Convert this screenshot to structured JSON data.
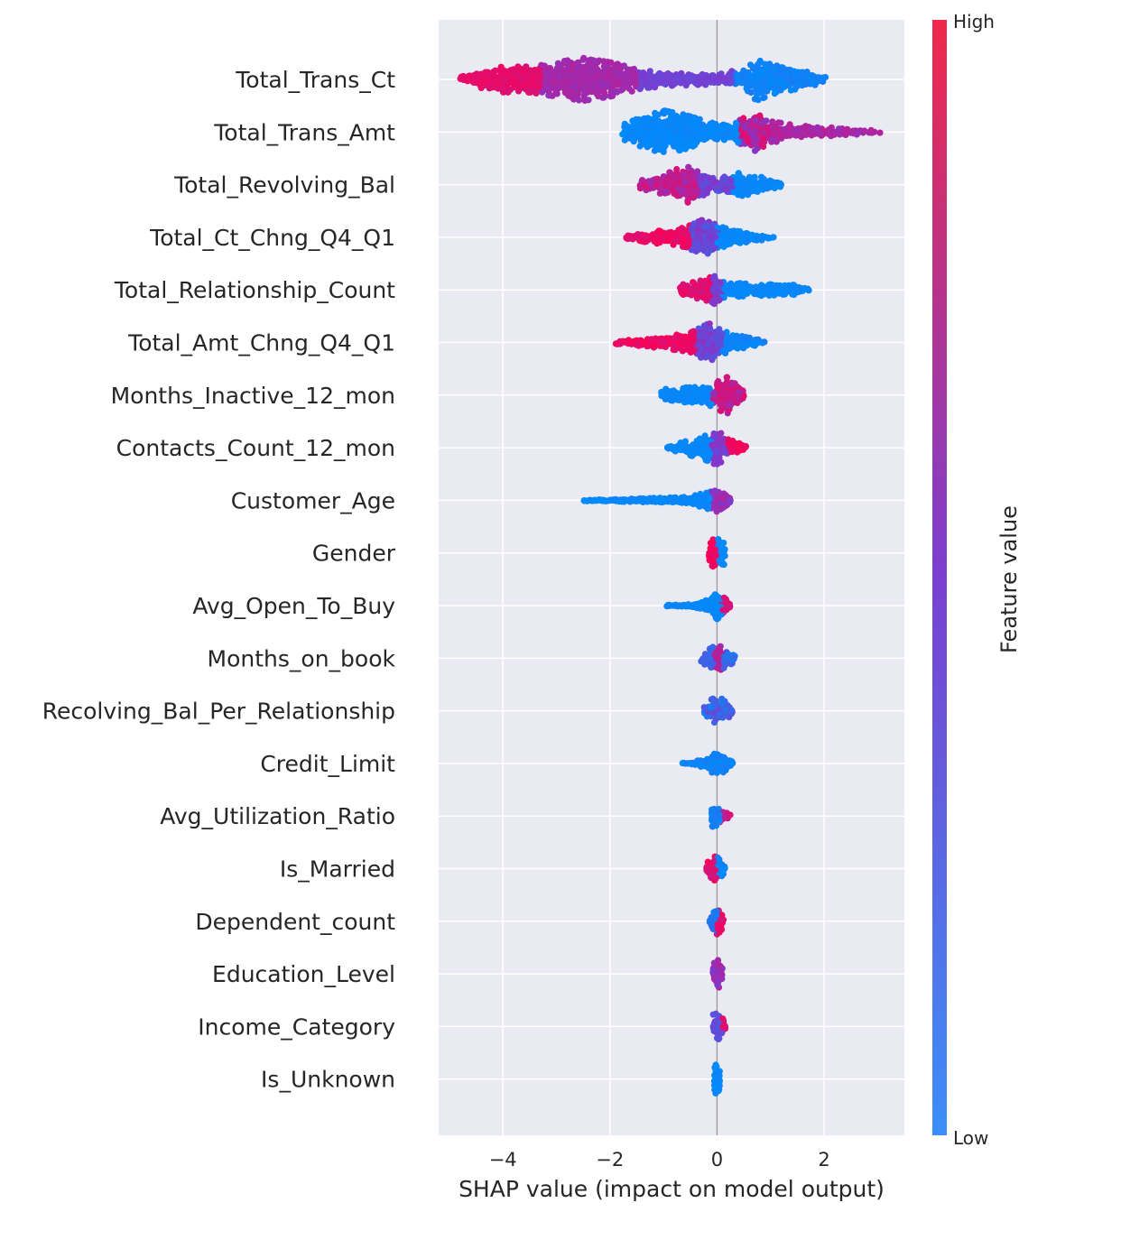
{
  "chart_data": {
    "type": "scatter",
    "subtype": "beeswarm",
    "title": "",
    "xlabel": "SHAP value (impact on model output)",
    "ylabel": "",
    "xlim": [
      -5.2,
      3.5
    ],
    "x_ticks": [
      {
        "value": -4,
        "label": "−4"
      },
      {
        "value": -2,
        "label": "−2"
      },
      {
        "value": 0,
        "label": "0"
      },
      {
        "value": 2,
        "label": "2"
      }
    ],
    "grid": true,
    "colorbar": {
      "title": "Feature value",
      "high_label": "High",
      "low_label": "Low",
      "high_color": "#ff0051",
      "low_color": "#008bfb"
    },
    "features": [
      {
        "name": "Total_Trans_Ct",
        "min": -4.8,
        "max": 2.05,
        "spread": 0.95,
        "color_segments": [
          [
            -4.8,
            -3.3,
            0.95,
            0.85
          ],
          [
            -3.3,
            -1.5,
            0.7,
            0.6
          ],
          [
            -1.5,
            0.3,
            0.5,
            0.4
          ],
          [
            0.3,
            2.05,
            0.1,
            0.0
          ]
        ],
        "density": [
          [
            -4.8,
            0.1
          ],
          [
            -4.4,
            0.4
          ],
          [
            -4.0,
            0.6
          ],
          [
            -3.5,
            0.6
          ],
          [
            -3.0,
            0.8
          ],
          [
            -2.5,
            1.0
          ],
          [
            -2.0,
            0.8
          ],
          [
            -1.5,
            0.5
          ],
          [
            -1.0,
            0.3
          ],
          [
            0.0,
            0.25
          ],
          [
            0.5,
            0.5
          ],
          [
            0.75,
            1.0
          ],
          [
            1.0,
            0.7
          ],
          [
            1.4,
            0.5
          ],
          [
            1.8,
            0.3
          ],
          [
            2.05,
            0.1
          ]
        ]
      },
      {
        "name": "Total_Trans_Amt",
        "min": -1.8,
        "max": 3.05,
        "spread": 0.95,
        "color_segments": [
          [
            -1.8,
            0.4,
            0.05,
            0.0
          ],
          [
            0.4,
            1.0,
            0.95,
            0.5
          ],
          [
            1.0,
            3.05,
            0.75,
            0.6
          ]
        ],
        "density": [
          [
            -1.8,
            0.3
          ],
          [
            -1.4,
            0.7
          ],
          [
            -1.0,
            1.0
          ],
          [
            -0.6,
            0.8
          ],
          [
            -0.2,
            0.5
          ],
          [
            0.3,
            0.4
          ],
          [
            0.7,
            0.9
          ],
          [
            1.0,
            0.5
          ],
          [
            1.5,
            0.3
          ],
          [
            2.2,
            0.2
          ],
          [
            3.05,
            0.05
          ]
        ]
      },
      {
        "name": "Total_Revolving_Bal",
        "min": -1.45,
        "max": 1.2,
        "spread": 0.85,
        "color_segments": [
          [
            -1.45,
            -0.35,
            0.85,
            0.6
          ],
          [
            -0.35,
            0.3,
            0.6,
            0.3
          ],
          [
            0.3,
            1.2,
            0.05,
            0.0
          ]
        ],
        "density": [
          [
            -1.45,
            0.2
          ],
          [
            -1.0,
            0.5
          ],
          [
            -0.6,
            1.0
          ],
          [
            -0.3,
            0.6
          ],
          [
            0.0,
            0.3
          ],
          [
            0.4,
            0.6
          ],
          [
            0.7,
            0.5
          ],
          [
            1.2,
            0.1
          ]
        ]
      },
      {
        "name": "Total_Ct_Chng_Q4_Q1",
        "min": -1.7,
        "max": 1.1,
        "spread": 0.85,
        "color_segments": [
          [
            -1.7,
            -0.5,
            1.0,
            0.85
          ],
          [
            -0.5,
            0.0,
            0.6,
            0.3
          ],
          [
            0.0,
            1.1,
            0.05,
            0.0
          ]
        ],
        "density": [
          [
            -1.7,
            0.1
          ],
          [
            -1.2,
            0.3
          ],
          [
            -0.6,
            0.5
          ],
          [
            -0.2,
            1.0
          ],
          [
            0.0,
            0.6
          ],
          [
            0.3,
            0.35
          ],
          [
            0.7,
            0.2
          ],
          [
            1.1,
            0.05
          ]
        ]
      },
      {
        "name": "Total_Relationship_Count",
        "min": -0.7,
        "max": 1.75,
        "spread": 0.7,
        "color_segments": [
          [
            -0.7,
            -0.1,
            0.95,
            0.8
          ],
          [
            -0.1,
            0.1,
            0.6,
            0.4
          ],
          [
            0.1,
            1.75,
            0.05,
            0.0
          ]
        ],
        "density": [
          [
            -0.7,
            0.3
          ],
          [
            -0.3,
            0.6
          ],
          [
            -0.1,
            1.0
          ],
          [
            0.1,
            0.5
          ],
          [
            0.5,
            0.4
          ],
          [
            1.0,
            0.35
          ],
          [
            1.5,
            0.3
          ],
          [
            1.75,
            0.1
          ]
        ]
      },
      {
        "name": "Total_Amt_Chng_Q4_Q1",
        "min": -1.9,
        "max": 0.95,
        "spread": 0.85,
        "color_segments": [
          [
            -1.9,
            -0.4,
            1.0,
            0.85
          ],
          [
            -0.4,
            0.1,
            0.6,
            0.3
          ],
          [
            0.1,
            0.95,
            0.1,
            0.0
          ]
        ],
        "density": [
          [
            -1.9,
            0.1
          ],
          [
            -1.0,
            0.3
          ],
          [
            -0.5,
            0.5
          ],
          [
            -0.15,
            1.0
          ],
          [
            0.1,
            0.6
          ],
          [
            0.5,
            0.3
          ],
          [
            0.95,
            0.05
          ]
        ]
      },
      {
        "name": "Months_Inactive_12_mon",
        "min": -1.05,
        "max": 0.5,
        "spread": 0.8,
        "color_segments": [
          [
            -1.05,
            -0.1,
            0.05,
            0.0
          ],
          [
            -0.1,
            0.5,
            0.9,
            0.6
          ]
        ],
        "density": [
          [
            -1.05,
            0.3
          ],
          [
            -0.5,
            0.5
          ],
          [
            -0.1,
            0.6
          ],
          [
            0.0,
            0.8
          ],
          [
            0.2,
            1.0
          ],
          [
            0.5,
            0.2
          ]
        ]
      },
      {
        "name": "Contacts_Count_12_mon",
        "min": -0.95,
        "max": 0.55,
        "spread": 0.85,
        "color_segments": [
          [
            -0.95,
            -0.1,
            0.05,
            0.0
          ],
          [
            -0.1,
            0.2,
            0.6,
            0.4
          ],
          [
            0.2,
            0.55,
            1.0,
            0.9
          ]
        ],
        "density": [
          [
            -0.95,
            0.05
          ],
          [
            -0.5,
            0.4
          ],
          [
            -0.15,
            0.7
          ],
          [
            0.0,
            1.0
          ],
          [
            0.15,
            0.5
          ],
          [
            0.55,
            0.1
          ]
        ]
      },
      {
        "name": "Customer_Age",
        "min": -2.55,
        "max": 0.25,
        "spread": 0.5,
        "color_segments": [
          [
            -2.55,
            -0.1,
            0.05,
            0.0
          ],
          [
            -0.1,
            0.25,
            0.7,
            0.5
          ]
        ],
        "density": [
          [
            -2.55,
            0.05
          ],
          [
            -1.5,
            0.15
          ],
          [
            -0.5,
            0.3
          ],
          [
            0.0,
            1.0
          ],
          [
            0.25,
            0.2
          ]
        ]
      },
      {
        "name": "Gender",
        "min": -0.15,
        "max": 0.15,
        "spread": 0.7,
        "color_segments": [
          [
            -0.15,
            0.0,
            1.0,
            0.9
          ],
          [
            0.0,
            0.15,
            0.05,
            0.0
          ]
        ],
        "density": [
          [
            -0.15,
            0.7
          ],
          [
            -0.05,
            0.9
          ],
          [
            0.05,
            0.9
          ],
          [
            0.15,
            0.7
          ]
        ]
      },
      {
        "name": "Avg_Open_To_Buy",
        "min": -0.95,
        "max": 0.25,
        "spread": 0.6,
        "color_segments": [
          [
            -0.95,
            0.1,
            0.05,
            0.0
          ],
          [
            0.1,
            0.25,
            0.9,
            0.8
          ]
        ],
        "density": [
          [
            -0.95,
            0.05
          ],
          [
            -0.5,
            0.1
          ],
          [
            -0.1,
            0.5
          ],
          [
            0.0,
            1.0
          ],
          [
            0.25,
            0.2
          ]
        ]
      },
      {
        "name": "Months_on_book",
        "min": -0.3,
        "max": 0.35,
        "spread": 0.6,
        "color_segments": [
          [
            -0.3,
            -0.05,
            0.3,
            0.2
          ],
          [
            -0.05,
            0.1,
            0.8,
            0.6
          ],
          [
            0.1,
            0.35,
            0.3,
            0.1
          ]
        ],
        "density": [
          [
            -0.3,
            0.3
          ],
          [
            0.0,
            1.0
          ],
          [
            0.35,
            0.3
          ]
        ]
      },
      {
        "name": "Recolving_Bal_Per_Relationship",
        "min": -0.25,
        "max": 0.3,
        "spread": 0.7,
        "color_segments": [
          [
            -0.25,
            0.3,
            0.4,
            0.1
          ]
        ],
        "density": [
          [
            -0.25,
            0.3
          ],
          [
            0.0,
            1.0
          ],
          [
            0.3,
            0.2
          ]
        ]
      },
      {
        "name": "Credit_Limit",
        "min": -0.65,
        "max": 0.3,
        "spread": 0.6,
        "color_segments": [
          [
            -0.65,
            0.3,
            0.1,
            0.0
          ]
        ],
        "density": [
          [
            -0.65,
            0.05
          ],
          [
            -0.2,
            0.3
          ],
          [
            0.0,
            1.0
          ],
          [
            0.3,
            0.1
          ]
        ]
      },
      {
        "name": "Avg_Utilization_Ratio",
        "min": -0.1,
        "max": 0.25,
        "spread": 0.6,
        "color_segments": [
          [
            -0.1,
            0.05,
            0.15,
            0.0
          ],
          [
            0.05,
            0.25,
            0.9,
            0.7
          ]
        ],
        "density": [
          [
            -0.1,
            0.8
          ],
          [
            0.05,
            0.7
          ],
          [
            0.25,
            0.15
          ]
        ]
      },
      {
        "name": "Is_Married",
        "min": -0.2,
        "max": 0.15,
        "spread": 0.6,
        "color_segments": [
          [
            -0.2,
            0.0,
            1.0,
            0.8
          ],
          [
            0.0,
            0.15,
            0.1,
            0.0
          ]
        ],
        "density": [
          [
            -0.2,
            0.4
          ],
          [
            0.0,
            1.0
          ],
          [
            0.15,
            0.3
          ]
        ]
      },
      {
        "name": "Dependent_count",
        "min": -0.15,
        "max": 0.12,
        "spread": 0.7,
        "color_segments": [
          [
            -0.15,
            0.0,
            0.2,
            0.0
          ],
          [
            0.0,
            0.12,
            0.95,
            0.8
          ]
        ],
        "density": [
          [
            -0.15,
            0.2
          ],
          [
            0.0,
            1.0
          ],
          [
            0.12,
            0.4
          ]
        ]
      },
      {
        "name": "Education_Level",
        "min": -0.08,
        "max": 0.1,
        "spread": 0.7,
        "color_segments": [
          [
            -0.08,
            0.1,
            0.7,
            0.5
          ]
        ],
        "density": [
          [
            -0.08,
            0.7
          ],
          [
            0.0,
            1.0
          ],
          [
            0.1,
            0.6
          ]
        ]
      },
      {
        "name": "Income_Category",
        "min": -0.08,
        "max": 0.18,
        "spread": 0.7,
        "color_segments": [
          [
            -0.08,
            0.1,
            0.5,
            0.3
          ],
          [
            0.1,
            0.18,
            0.9,
            0.8
          ]
        ],
        "density": [
          [
            -0.08,
            0.8
          ],
          [
            0.05,
            0.8
          ],
          [
            0.18,
            0.1
          ]
        ]
      },
      {
        "name": "Is_Unknown",
        "min": -0.05,
        "max": 0.05,
        "spread": 0.7,
        "color_segments": [
          [
            -0.05,
            0.05,
            0.05,
            0.0
          ]
        ],
        "density": [
          [
            -0.05,
            0.9
          ],
          [
            0.05,
            0.9
          ]
        ]
      }
    ]
  }
}
